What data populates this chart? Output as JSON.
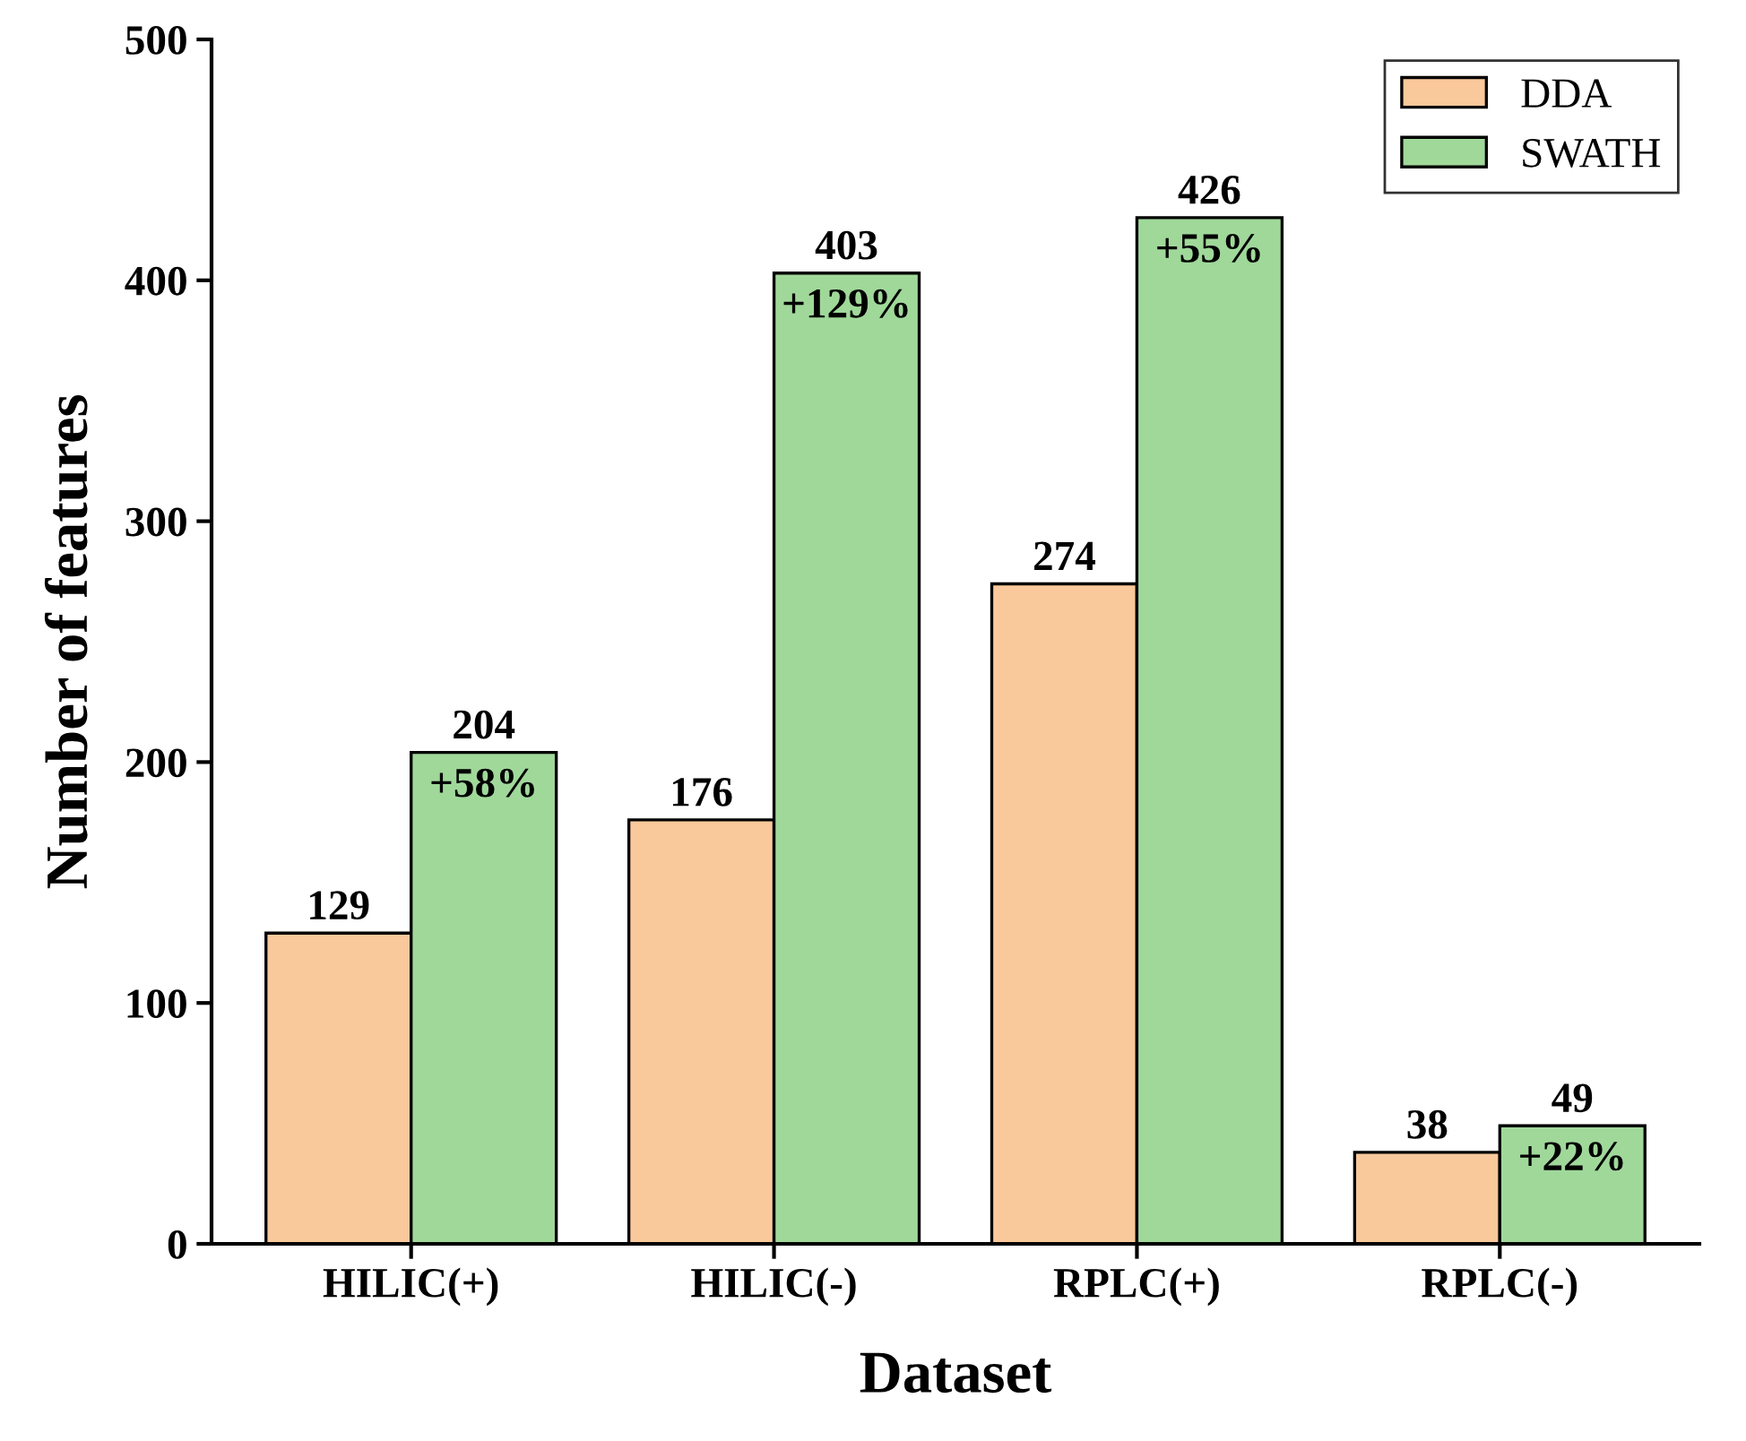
{
  "chart_data": {
    "type": "bar",
    "xlabel": "Dataset",
    "ylabel": "Number of features",
    "categories": [
      "HILIC(+)",
      "HILIC(-)",
      "RPLC(+)",
      "RPLC(-)"
    ],
    "series": [
      {
        "name": "DDA",
        "color": "#f9c89b",
        "values": [
          129,
          176,
          274,
          38
        ]
      },
      {
        "name": "SWATH",
        "color": "#a0d89a",
        "values": [
          204,
          403,
          426,
          49
        ]
      }
    ],
    "data_labels": true,
    "annotations": [
      {
        "text": "+58%",
        "x": "HILIC(+)",
        "y": 204
      },
      {
        "text": "+129%",
        "x": "HILIC(-)",
        "y": 403
      },
      {
        "text": "+55%",
        "x": "RPLC(+)",
        "y": 426
      },
      {
        "text": "+22%",
        "x": "RPLC(-)",
        "y": 49
      }
    ],
    "ylim": [
      0,
      500
    ],
    "yticks": [
      0,
      100,
      200,
      300,
      400,
      500
    ],
    "grid": false,
    "legend": "top right"
  }
}
